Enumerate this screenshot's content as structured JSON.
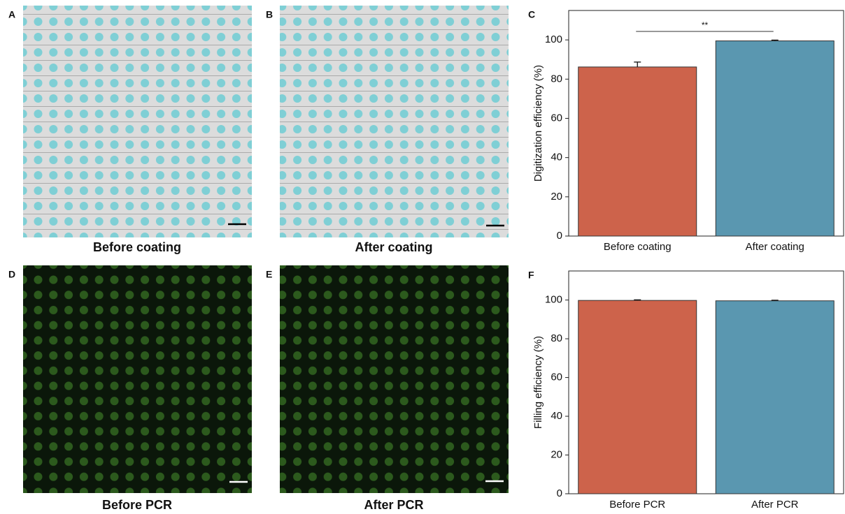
{
  "panels": [
    {
      "label": "A",
      "caption": "Before coating"
    },
    {
      "label": "B",
      "caption": "After coating"
    },
    {
      "label": "D",
      "caption": "Before PCR"
    },
    {
      "label": "E",
      "caption": "After PCR"
    }
  ],
  "chart_data": [
    {
      "type": "bar",
      "label": "C",
      "y_label": "Digitization efficiency (%)",
      "categories": [
        "Before coating",
        "After coating"
      ],
      "values": [
        86.2,
        99.5
      ],
      "errors": [
        2.5,
        0.4
      ],
      "colors": [
        "#cd634b",
        "#5a97b0"
      ],
      "ylim": [
        0,
        115
      ],
      "yticks": [
        0,
        20,
        40,
        60,
        80,
        100
      ],
      "annotation": "**"
    },
    {
      "type": "bar",
      "label": "F",
      "y_label": "Filling efficiency (%)",
      "categories": [
        "Before PCR",
        "After PCR"
      ],
      "values": [
        99.8,
        99.6
      ],
      "errors": [
        0.3,
        0.3
      ],
      "colors": [
        "#cd634b",
        "#5a97b0"
      ],
      "ylim": [
        0,
        115
      ],
      "yticks": [
        0,
        20,
        40,
        60,
        80,
        100
      ]
    }
  ]
}
